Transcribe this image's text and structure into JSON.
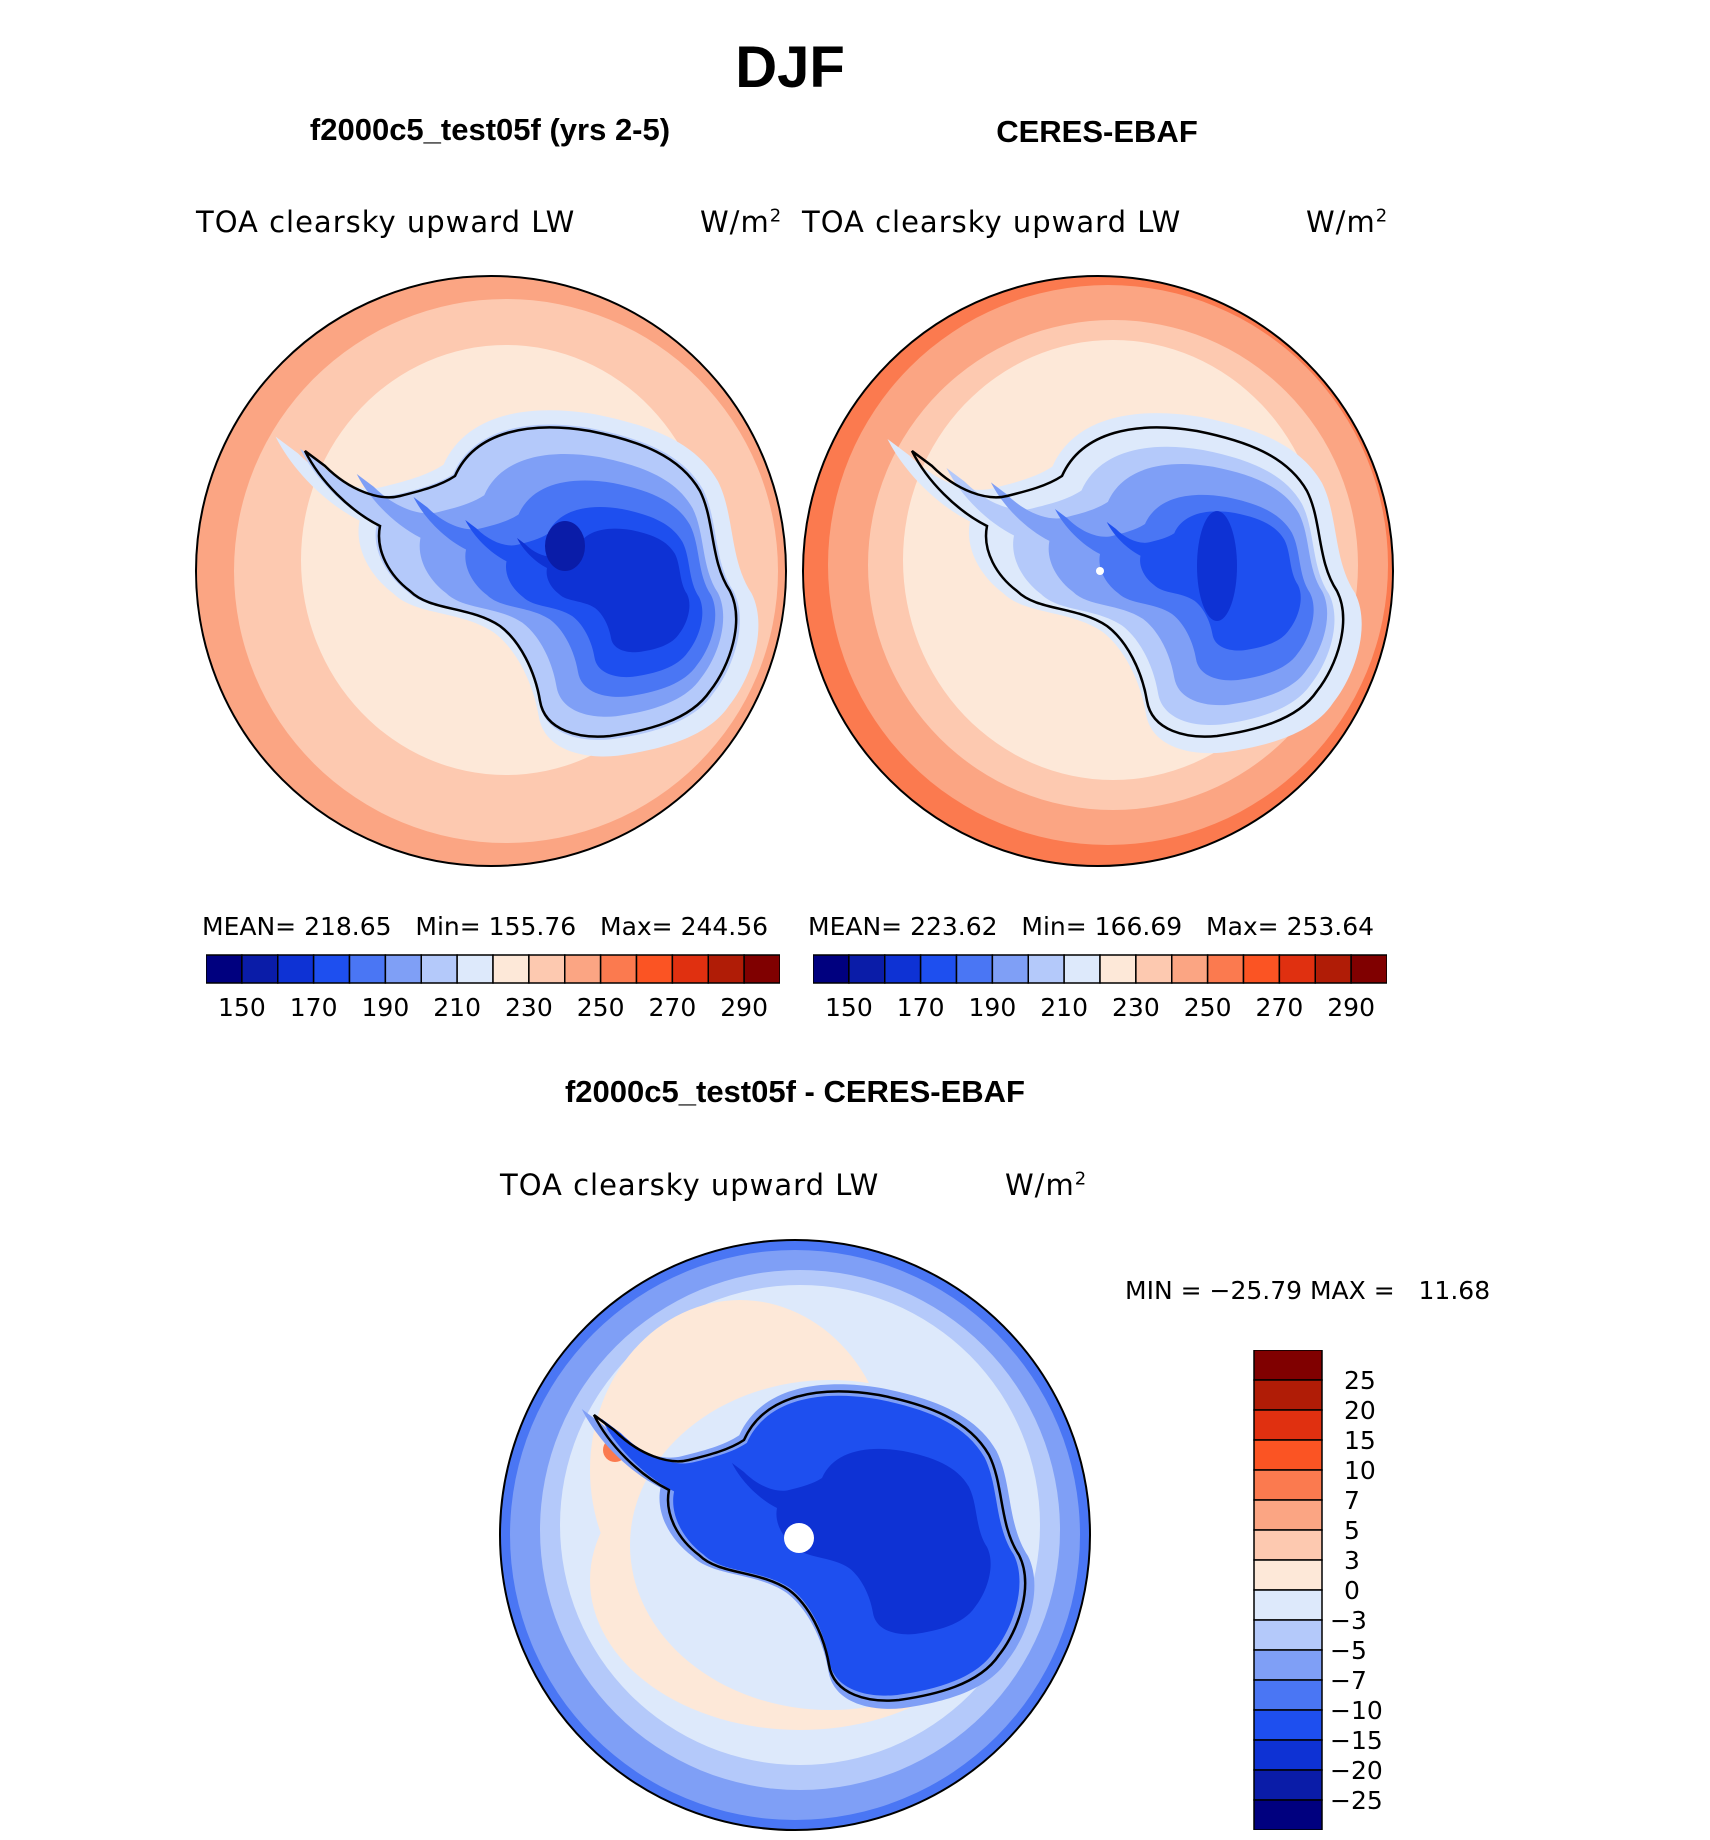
{
  "title": "DJF",
  "panels": [
    {
      "id": "model",
      "subtitle": "f2000c5_test05f (yrs 2-5)",
      "left_label": "TOA clearsky upward LW",
      "units": "W/m",
      "units_sup": "2",
      "stats": {
        "mean_label": "MEAN=",
        "mean": "218.65",
        "min_label": "Min=",
        "min": "155.76",
        "max_label": "Max=",
        "max": "244.56"
      }
    },
    {
      "id": "obs",
      "subtitle": "CERES-EBAF",
      "left_label": "TOA clearsky upward LW",
      "units": "W/m",
      "units_sup": "2",
      "stats": {
        "mean_label": "MEAN=",
        "mean": "223.62",
        "min_label": "Min=",
        "min": "166.69",
        "max_label": "Max=",
        "max": "253.64"
      }
    }
  ],
  "abs_colorbar": {
    "colors": [
      "#00007f",
      "#0a1ca8",
      "#0e32d4",
      "#1e4fef",
      "#4a76f4",
      "#7f9ff6",
      "#b4c9fa",
      "#dde9fb",
      "#fde8d8",
      "#fdc9b0",
      "#fba583",
      "#fb7a4f",
      "#fb5423",
      "#e03010",
      "#b01c06",
      "#800000"
    ],
    "tick_labels": [
      "150",
      "170",
      "190",
      "210",
      "230",
      "250",
      "270",
      "290"
    ]
  },
  "diff_panel": {
    "subtitle": "f2000c5_test05f - CERES-EBAF",
    "left_label": "TOA clearsky upward LW",
    "units": "W/m",
    "units_sup": "2",
    "min_label": "MIN =",
    "min": "−25.79",
    "max_label": "MAX =",
    "max": "11.68"
  },
  "diff_colorbar": {
    "colors": [
      "#800000",
      "#b01c06",
      "#e03010",
      "#fb5423",
      "#fb7a4f",
      "#fba583",
      "#fdc9b0",
      "#fde8d8",
      "#dde9fb",
      "#b4c9fa",
      "#7f9ff6",
      "#4a76f4",
      "#1e4fef",
      "#0e32d4",
      "#0a1ca8",
      "#00007f"
    ],
    "tick_labels": [
      "25",
      "20",
      "15",
      "10",
      "7",
      "5",
      "3",
      "0",
      "−3",
      "−5",
      "−7",
      "−10",
      "−15",
      "−20",
      "−25"
    ]
  }
}
